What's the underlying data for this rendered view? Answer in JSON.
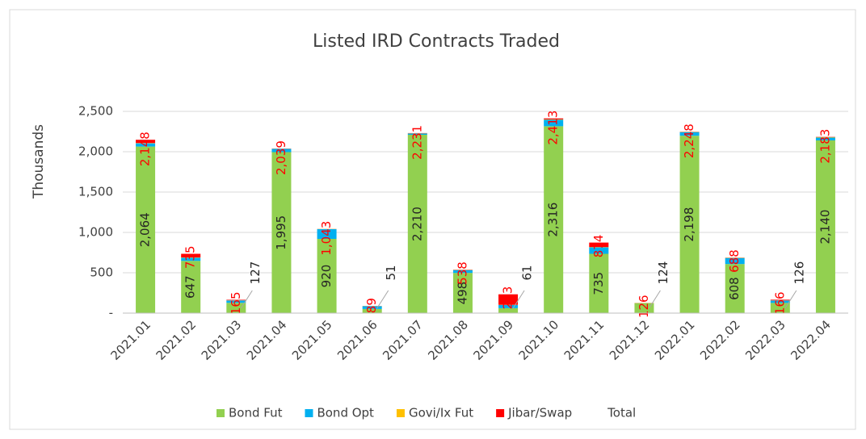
{
  "chart_data": {
    "type": "stacked_bar",
    "title": "Listed IRD Contracts Traded",
    "y_label": "Thousands",
    "categories": [
      "2021.01",
      "2021.02",
      "2021.03",
      "2021.04",
      "2021.05",
      "2021.06",
      "2021.07",
      "2021.08",
      "2021.09",
      "2021.10",
      "2021.11",
      "2021.12",
      "2022.01",
      "2022.02",
      "2022.03",
      "2022.04"
    ],
    "series": [
      {
        "name": "Bond Fut",
        "color": "#92d050",
        "values": [
          2064,
          647,
          127,
          1995,
          920,
          51,
          2210,
          498,
          61,
          2316,
          735,
          124,
          2198,
          608,
          126,
          2140
        ],
        "value_labels": [
          "2,064",
          "647",
          "127",
          "1,995",
          "920",
          "51",
          "2,210",
          "498",
          "61",
          "2,316",
          "735",
          "124",
          "2,198",
          "608",
          "126",
          "2,140"
        ]
      },
      {
        "name": "Bond Opt",
        "color": "#00b0f0",
        "values": [
          40,
          40,
          30,
          40,
          120,
          35,
          15,
          35,
          40,
          80,
          80,
          0,
          45,
          75,
          30,
          35
        ]
      },
      {
        "name": "Govi/Ix Fut",
        "color": "#ffc000",
        "values": [
          4,
          3,
          2,
          2,
          2,
          2,
          3,
          2,
          2,
          5,
          4,
          1,
          3,
          3,
          2,
          5
        ]
      },
      {
        "name": "Jibar/Swap",
        "color": "#ff0000",
        "values": [
          40,
          45,
          6,
          2,
          1,
          1,
          3,
          3,
          130,
          12,
          55,
          1,
          2,
          2,
          8,
          3
        ]
      },
      {
        "name": "Total",
        "color": "#ff0000",
        "values": [
          2148,
          735,
          165,
          2039,
          1043,
          89,
          2231,
          538,
          233,
          2413,
          874,
          126,
          2248,
          688,
          166,
          2183
        ],
        "value_labels": [
          "2,148",
          "735",
          "165",
          "2,039",
          "1,043",
          "89",
          "2,231",
          "538",
          "233",
          "2,413",
          "874",
          "126",
          "2,248",
          "688",
          "166",
          "2,183"
        ]
      }
    ],
    "ylim": [
      0,
      3000
    ],
    "yticks": [
      {
        "value": 0,
        "label": "-"
      },
      500,
      {
        "value": 1000,
        "label": "1,000"
      },
      {
        "value": 1500,
        "label": "1,500"
      },
      {
        "value": 2000,
        "label": "2,000"
      },
      {
        "value": 2500,
        "label": "2,500"
      }
    ],
    "grid": true,
    "legend": "bottom"
  }
}
